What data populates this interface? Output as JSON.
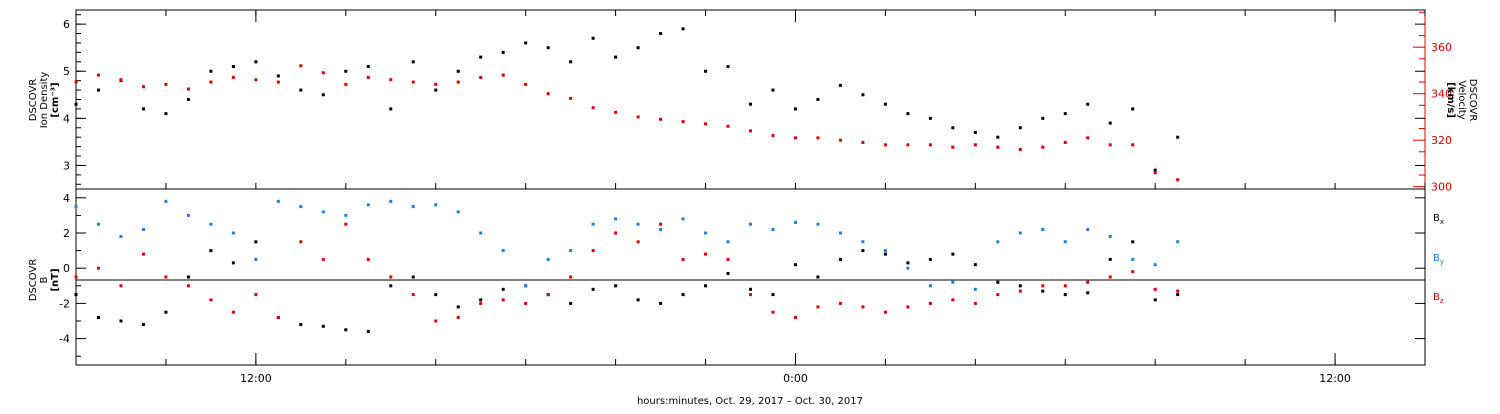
{
  "chart_data": [
    {
      "type": "scatter",
      "panel": "top",
      "xlabel": "hours:minutes, Oct. 29, 2017 – Oct. 30, 2017",
      "x_unit": "hours since 00:00 Oct. 29, 2017",
      "xlim": [
        8.0,
        38.0
      ],
      "x_ticks": [
        "12:00",
        "0:00",
        "12:00"
      ],
      "ylabel_left": [
        "DSCOVR",
        "Ion Density",
        "[cm⁻³]"
      ],
      "ylim_left": [
        2.5,
        6.3
      ],
      "y_ticks_left": [
        "3",
        "4",
        "5",
        "6"
      ],
      "ylabel_right": [
        "DSCOVR",
        "Velocity",
        "[km/s]"
      ],
      "ylim_right": [
        299,
        376
      ],
      "y_ticks_right": [
        "300",
        "320",
        "340",
        "360"
      ],
      "series": [
        {
          "name": "Ion Density",
          "axis": "left",
          "color": "#000000",
          "x": [
            8.0,
            8.5,
            9.0,
            9.5,
            10.0,
            10.5,
            11.0,
            11.5,
            12.0,
            12.5,
            13.0,
            13.5,
            14.0,
            14.5,
            15.0,
            15.5,
            16.0,
            16.5,
            17.0,
            17.5,
            18.0,
            18.5,
            19.0,
            19.5,
            20.0,
            20.5,
            21.0,
            21.5,
            22.0,
            22.5,
            23.0,
            23.5,
            24.0,
            24.5,
            25.0,
            25.5,
            26.0,
            26.5,
            27.0,
            27.5,
            28.0,
            28.5,
            29.0,
            29.5,
            30.0,
            30.5,
            31.0,
            31.5,
            32.0,
            32.5
          ],
          "values": [
            4.3,
            4.6,
            4.8,
            4.2,
            4.1,
            4.4,
            5.0,
            5.1,
            5.2,
            4.9,
            4.6,
            4.5,
            5.0,
            5.1,
            4.2,
            5.2,
            4.6,
            5.0,
            5.3,
            5.4,
            5.6,
            5.5,
            5.2,
            5.7,
            5.3,
            5.5,
            5.8,
            5.9,
            5.0,
            5.1,
            4.3,
            4.6,
            4.2,
            4.4,
            4.7,
            4.5,
            4.3,
            4.1,
            4.0,
            3.8,
            3.7,
            3.6,
            3.8,
            4.0,
            4.1,
            4.3,
            3.9,
            4.2,
            2.9,
            3.6
          ]
        },
        {
          "name": "Velocity",
          "axis": "right",
          "color": "#e00000",
          "x": [
            8.0,
            8.5,
            9.0,
            9.5,
            10.0,
            10.5,
            11.0,
            11.5,
            12.0,
            12.5,
            13.0,
            13.5,
            14.0,
            14.5,
            15.0,
            15.5,
            16.0,
            16.5,
            17.0,
            17.5,
            18.0,
            18.5,
            19.0,
            19.5,
            20.0,
            20.5,
            21.0,
            21.5,
            22.0,
            22.5,
            23.0,
            23.5,
            24.0,
            24.5,
            25.0,
            25.5,
            26.0,
            26.5,
            27.0,
            27.5,
            28.0,
            28.5,
            29.0,
            29.5,
            30.0,
            30.5,
            31.0,
            31.5,
            32.0,
            32.5
          ],
          "values": [
            345,
            348,
            346,
            343,
            344,
            342,
            345,
            347,
            346,
            345,
            352,
            349,
            344,
            347,
            346,
            345,
            344,
            345,
            347,
            348,
            344,
            340,
            338,
            334,
            332,
            330,
            329,
            328,
            327,
            326,
            324,
            322,
            321,
            321,
            320,
            319,
            318,
            318,
            318,
            317,
            318,
            317,
            316,
            317,
            319,
            321,
            318,
            318,
            306,
            303
          ]
        }
      ]
    },
    {
      "type": "scatter",
      "panel": "bottom",
      "xlim": [
        8.0,
        38.0
      ],
      "ylabel": [
        "DSCOVR",
        "B",
        "[nT]"
      ],
      "ylim": [
        -5.5,
        4.5
      ],
      "y_ticks": [
        "-4",
        "-2",
        "0",
        "2",
        "4"
      ],
      "legend": "right",
      "series": [
        {
          "name": "Bₓ",
          "label_main": "B",
          "label_sub": "x",
          "color": "#000000",
          "x": [
            8.0,
            8.5,
            9.0,
            9.5,
            10.0,
            10.5,
            11.0,
            11.5,
            12.0,
            12.5,
            13.0,
            13.5,
            14.0,
            14.5,
            15.0,
            15.5,
            16.0,
            16.5,
            17.0,
            17.5,
            18.0,
            18.5,
            19.0,
            19.5,
            20.0,
            20.5,
            21.0,
            21.5,
            22.0,
            22.5,
            23.0,
            23.5,
            24.0,
            24.5,
            25.0,
            25.5,
            26.0,
            26.5,
            27.0,
            27.5,
            28.0,
            28.5,
            29.0,
            29.5,
            30.0,
            30.5,
            31.0,
            31.5,
            32.0,
            32.5
          ],
          "values": [
            -1.5,
            -2.8,
            -3.0,
            -3.2,
            -2.5,
            -0.5,
            1.0,
            0.3,
            1.5,
            -2.8,
            -3.2,
            -3.3,
            -3.5,
            -3.6,
            -1.0,
            -0.5,
            -1.5,
            -2.2,
            -1.8,
            -1.2,
            -1.0,
            -1.5,
            -2.0,
            -1.2,
            -1.0,
            -1.8,
            -2.0,
            -1.5,
            -1.0,
            -0.3,
            -1.2,
            -1.5,
            0.2,
            -0.5,
            0.5,
            1.0,
            0.8,
            0.3,
            0.5,
            0.8,
            0.2,
            -0.8,
            -1.0,
            -1.3,
            -1.5,
            -1.4,
            0.5,
            1.5,
            -1.8,
            -1.5
          ]
        },
        {
          "name": "Bᵧ",
          "label_main": "B",
          "label_sub": "y",
          "color": "#1f7fe0",
          "x": [
            8.0,
            8.5,
            9.0,
            9.5,
            10.0,
            10.5,
            11.0,
            11.5,
            12.0,
            12.5,
            13.0,
            13.5,
            14.0,
            14.5,
            15.0,
            15.5,
            16.0,
            16.5,
            17.0,
            17.5,
            18.0,
            18.5,
            19.0,
            19.5,
            20.0,
            20.5,
            21.0,
            21.5,
            22.0,
            22.5,
            23.0,
            23.5,
            24.0,
            24.5,
            25.0,
            25.5,
            26.0,
            26.5,
            27.0,
            27.5,
            28.0,
            28.5,
            29.0,
            29.5,
            30.0,
            30.5,
            31.0,
            31.5,
            32.0,
            32.5
          ],
          "values": [
            3.5,
            2.5,
            1.8,
            2.2,
            3.8,
            3.0,
            2.5,
            2.0,
            0.5,
            3.8,
            3.5,
            3.2,
            3.0,
            3.6,
            3.8,
            3.5,
            3.6,
            3.2,
            2.0,
            1.0,
            -1.0,
            0.5,
            1.0,
            2.5,
            2.8,
            2.5,
            2.2,
            2.8,
            2.0,
            1.5,
            2.5,
            2.2,
            2.6,
            2.5,
            2.0,
            1.5,
            1.0,
            0.0,
            -1.0,
            -0.8,
            -1.2,
            1.5,
            2.0,
            2.2,
            1.5,
            2.2,
            1.8,
            0.5,
            0.2,
            1.5
          ]
        },
        {
          "name": "Bₔ",
          "label_main": "B",
          "label_sub": "z",
          "color": "#e00000",
          "x": [
            8.0,
            8.5,
            9.0,
            9.5,
            10.0,
            10.5,
            11.0,
            11.5,
            12.0,
            12.5,
            13.0,
            13.5,
            14.0,
            14.5,
            15.0,
            15.5,
            16.0,
            16.5,
            17.0,
            17.5,
            18.0,
            18.5,
            19.0,
            19.5,
            20.0,
            20.5,
            21.0,
            21.5,
            22.0,
            22.5,
            23.0,
            23.5,
            24.0,
            24.5,
            25.0,
            25.5,
            26.0,
            26.5,
            27.0,
            27.5,
            28.0,
            28.5,
            29.0,
            29.5,
            30.0,
            30.5,
            31.0,
            31.5,
            32.0,
            32.5
          ],
          "values": [
            -0.5,
            0.0,
            -1.0,
            0.8,
            -0.5,
            -1.0,
            -1.8,
            -2.5,
            -1.5,
            -2.8,
            1.5,
            0.5,
            2.5,
            0.5,
            -0.5,
            -1.5,
            -3.0,
            -2.8,
            -2.0,
            -1.8,
            -2.0,
            -1.5,
            -0.5,
            1.0,
            2.0,
            1.5,
            2.5,
            0.5,
            0.8,
            0.5,
            -1.5,
            -2.5,
            -2.8,
            -2.2,
            -2.0,
            -2.2,
            -2.5,
            -2.2,
            -2.0,
            -1.8,
            -2.0,
            -1.5,
            -1.3,
            -1.0,
            -1.0,
            -0.8,
            -0.5,
            -0.2,
            -1.2,
            -1.3
          ]
        }
      ]
    }
  ]
}
